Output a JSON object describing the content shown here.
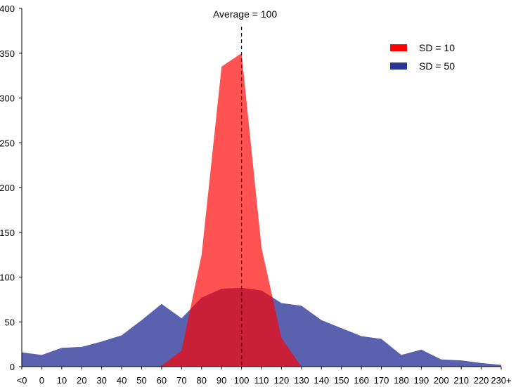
{
  "chart_data": {
    "type": "area",
    "categories": [
      "<0",
      "0",
      "10",
      "20",
      "30",
      "40",
      "50",
      "60",
      "70",
      "80",
      "90",
      "100",
      "110",
      "120",
      "130",
      "140",
      "150",
      "160",
      "170",
      "180",
      "190",
      "200",
      "210",
      "220",
      "230+"
    ],
    "series": [
      {
        "name": "SD = 50",
        "color": "#2b3598",
        "values": [
          16,
          13,
          21,
          22,
          28,
          35,
          52,
          70,
          54,
          77,
          87,
          88,
          85,
          71,
          68,
          52,
          43,
          34,
          31,
          13,
          19,
          8,
          7,
          4,
          2
        ]
      },
      {
        "name": "SD = 10",
        "color": "#ff0000",
        "values": [
          0,
          0,
          0,
          0,
          0,
          0,
          0,
          1,
          18,
          125,
          335,
          350,
          133,
          32,
          0,
          0,
          0,
          0,
          0,
          0,
          0,
          0,
          0,
          0,
          0
        ]
      }
    ],
    "ylim": [
      0,
      400
    ],
    "yticks": [
      "0",
      "50",
      "100",
      "150",
      "200",
      "250",
      "300",
      "350",
      "400"
    ],
    "annotation": {
      "text": "Average = 100",
      "x": "100"
    },
    "legend": "top-right",
    "grid": false
  }
}
